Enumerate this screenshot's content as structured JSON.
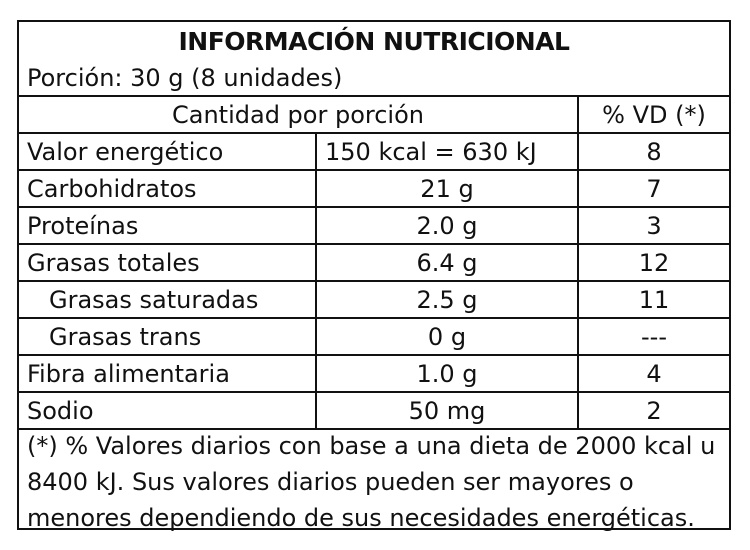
{
  "title": "INFORMACIÓN NUTRICIONAL",
  "serving": "Porción: 30 g (8 unidades)",
  "header": {
    "amount_label": "Cantidad por porción",
    "dv_label": "% VD (*)"
  },
  "rows": [
    {
      "name": "Valor energético",
      "amount": "150 kcal = 630 kJ",
      "dv": "8"
    },
    {
      "name": "Carbohidratos",
      "amount": "21 g",
      "dv": "7"
    },
    {
      "name": "Proteínas",
      "amount": "2.0 g",
      "dv": "3"
    },
    {
      "name": "Grasas totales",
      "amount": "6.4 g",
      "dv": "12"
    },
    {
      "name": "Grasas saturadas",
      "amount": "2.5 g",
      "dv": "11"
    },
    {
      "name": "Grasas trans",
      "amount": "0 g",
      "dv": "---"
    },
    {
      "name": "Fibra alimentaria",
      "amount": "1.0 g",
      "dv": "4"
    },
    {
      "name": "Sodio",
      "amount": "50 mg",
      "dv": "2"
    }
  ],
  "footnote": "(*) % Valores diarios con base a una dieta de 2000 kcal u 8400 kJ. Sus valores diarios pueden ser mayores o menores dependiendo de sus necesidades energéticas."
}
